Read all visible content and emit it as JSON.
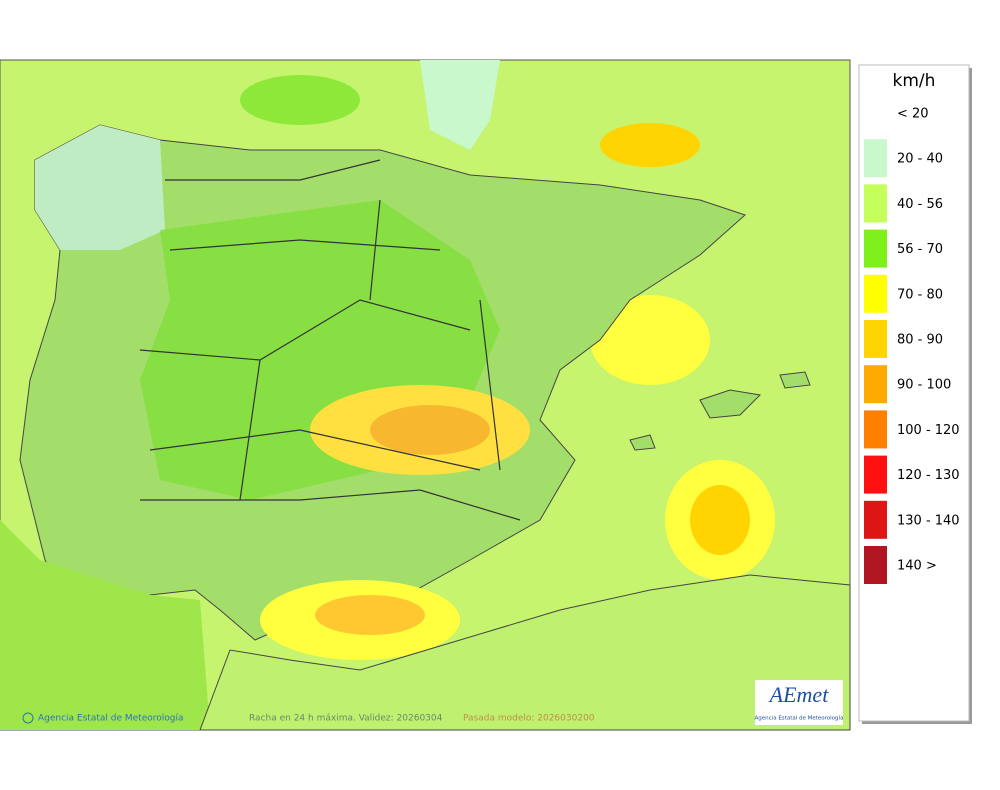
{
  "legend": {
    "unit": "km/h",
    "items": [
      {
        "label": "< 20"
      },
      {
        "label": "20 - 40",
        "color": "#c8f8cc"
      },
      {
        "label": "40 - 56",
        "color": "#c4ff5a"
      },
      {
        "label": "56 - 70",
        "color": "#7ff01a"
      },
      {
        "label": "70 - 80",
        "color": "#ffff00"
      },
      {
        "label": "80 - 90",
        "color": "#ffd400"
      },
      {
        "label": "90 - 100",
        "color": "#ffaa00"
      },
      {
        "label": "100 - 120",
        "color": "#ff8000"
      },
      {
        "label": "120 - 130",
        "color": "#ff1010"
      },
      {
        "label": "130 - 140",
        "color": "#dd1515"
      },
      {
        "label": "140 >",
        "color": "#b01522"
      }
    ]
  },
  "footer": {
    "credit": "Agencia Estatal de Meteorología",
    "caption": "Racha en 24 h máxima. Validez: 20260304",
    "model_run": "Pasada modelo: 2026030200"
  },
  "logo": {
    "name": "AEmet",
    "subtitle": "Agencia Estatal de Meteorología"
  }
}
